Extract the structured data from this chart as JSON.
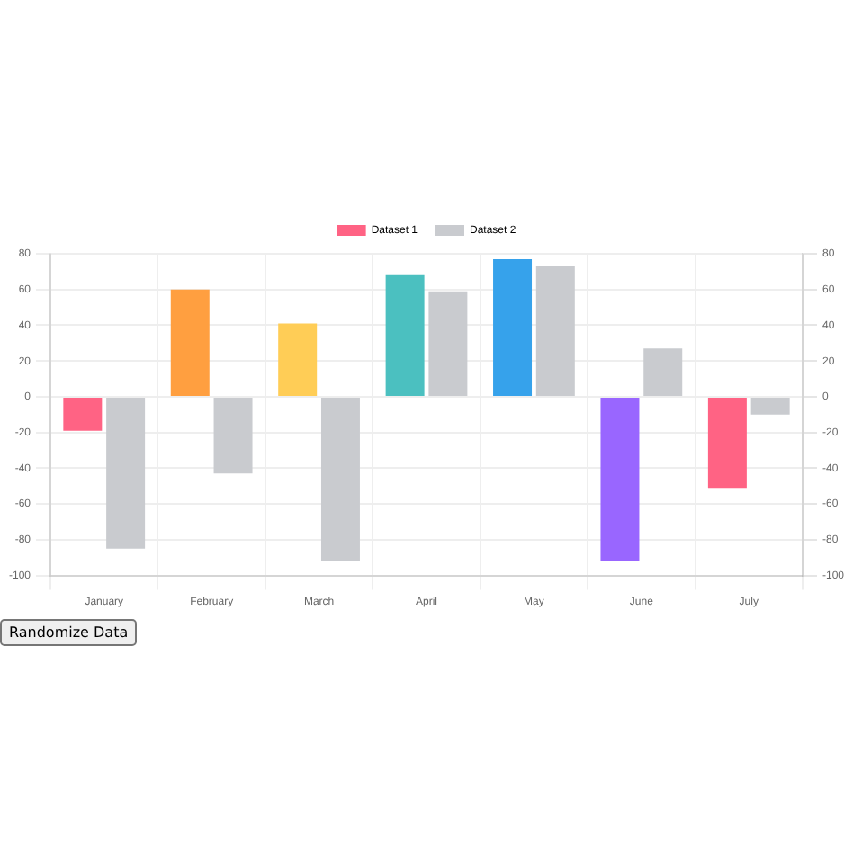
{
  "chart_data": {
    "type": "bar",
    "categories": [
      "January",
      "February",
      "March",
      "April",
      "May",
      "June",
      "July"
    ],
    "series": [
      {
        "name": "Dataset 1",
        "color": "#ff6384",
        "colors": [
          "#ff6384",
          "#ff9f40",
          "#ffcd56",
          "#4bc0c0",
          "#36a2eb",
          "#9966ff",
          "#ff6384"
        ],
        "values": [
          -19,
          60,
          41,
          68,
          77,
          -92,
          -51
        ]
      },
      {
        "name": "Dataset 2",
        "color": "#c9cbcf",
        "values": [
          -85,
          -43,
          -92,
          59,
          73,
          27,
          -10
        ]
      }
    ],
    "ylim": [
      -100,
      80
    ],
    "yticks": [
      -100,
      -80,
      -60,
      -40,
      -20,
      0,
      20,
      40,
      60,
      80
    ],
    "y2lim": [
      -100,
      80
    ],
    "y2ticks": [
      -100,
      -80,
      -60,
      -40,
      -20,
      0,
      20,
      40,
      60,
      80
    ],
    "grid": true,
    "legend": "top",
    "annotations": [
      "Randomize Data"
    ]
  }
}
